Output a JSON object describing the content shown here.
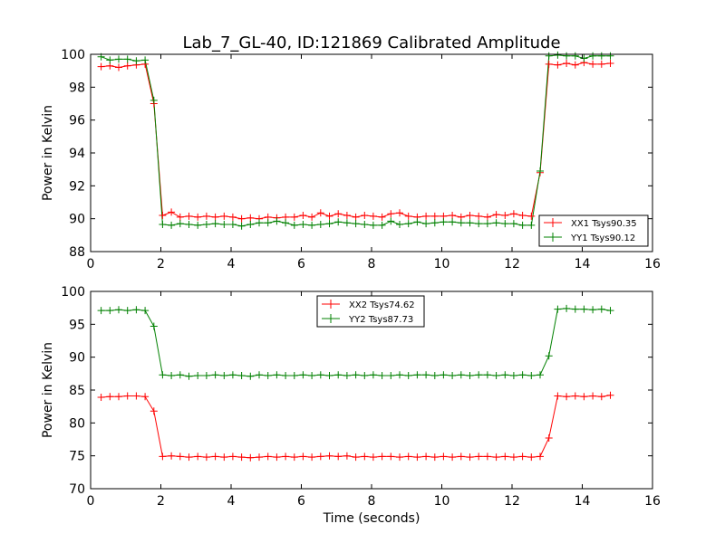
{
  "chart_data": [
    {
      "type": "line",
      "title": "Lab_7_GL-40, ID:121869 Calibrated Amplitude",
      "xlabel": "",
      "ylabel": "Power in Kelvin",
      "xlim": [
        0,
        16
      ],
      "ylim": [
        88,
        100
      ],
      "xticks": [
        "0",
        "2",
        "4",
        "6",
        "8",
        "10",
        "12",
        "14",
        "16"
      ],
      "yticks": [
        "88",
        "90",
        "92",
        "94",
        "96",
        "98",
        "100"
      ],
      "grid": false,
      "legend_position": "lower-right",
      "x": [
        0.3,
        0.55,
        0.8,
        1.05,
        1.3,
        1.55,
        1.8,
        2.05,
        2.3,
        2.55,
        2.8,
        3.05,
        3.3,
        3.55,
        3.8,
        4.05,
        4.3,
        4.55,
        4.8,
        5.05,
        5.3,
        5.55,
        5.8,
        6.05,
        6.3,
        6.55,
        6.8,
        7.05,
        7.3,
        7.55,
        7.8,
        8.05,
        8.3,
        8.55,
        8.8,
        9.05,
        9.3,
        9.55,
        9.8,
        10.05,
        10.3,
        10.55,
        10.8,
        11.05,
        11.3,
        11.55,
        11.8,
        12.05,
        12.3,
        12.55,
        12.8,
        13.05,
        13.3,
        13.55,
        13.8,
        14.05,
        14.3,
        14.55,
        14.8
      ],
      "series": [
        {
          "name": "XX1 Tsys90.35",
          "color": "#ff0000",
          "values": [
            99.25,
            99.3,
            99.2,
            99.3,
            99.35,
            99.4,
            97.0,
            90.2,
            90.4,
            90.1,
            90.15,
            90.1,
            90.15,
            90.1,
            90.15,
            90.1,
            90.0,
            90.05,
            90.0,
            90.1,
            90.05,
            90.1,
            90.1,
            90.2,
            90.1,
            90.35,
            90.15,
            90.3,
            90.2,
            90.1,
            90.2,
            90.15,
            90.1,
            90.3,
            90.35,
            90.15,
            90.1,
            90.15,
            90.15,
            90.15,
            90.2,
            90.1,
            90.2,
            90.15,
            90.1,
            90.25,
            90.2,
            90.3,
            90.2,
            90.15,
            92.8,
            99.4,
            99.35,
            99.45,
            99.35,
            99.5,
            99.4,
            99.4,
            99.45
          ]
        },
        {
          "name": "YY1 Tsys90.12",
          "color": "#008000",
          "values": [
            99.85,
            99.65,
            99.7,
            99.7,
            99.6,
            99.65,
            97.2,
            89.65,
            89.6,
            89.7,
            89.65,
            89.6,
            89.65,
            89.7,
            89.65,
            89.65,
            89.55,
            89.65,
            89.75,
            89.75,
            89.85,
            89.75,
            89.6,
            89.65,
            89.6,
            89.65,
            89.7,
            89.8,
            89.75,
            89.7,
            89.65,
            89.6,
            89.6,
            89.85,
            89.65,
            89.7,
            89.8,
            89.7,
            89.75,
            89.8,
            89.8,
            89.75,
            89.75,
            89.7,
            89.7,
            89.75,
            89.7,
            89.7,
            89.6,
            89.6,
            92.9,
            99.9,
            99.95,
            99.9,
            99.9,
            99.75,
            99.9,
            99.9,
            99.9
          ]
        }
      ]
    },
    {
      "type": "line",
      "title": "",
      "xlabel": "Time (seconds)",
      "ylabel": "Power in Kelvin",
      "xlim": [
        0,
        16
      ],
      "ylim": [
        70,
        100
      ],
      "xticks": [
        "0",
        "2",
        "4",
        "6",
        "8",
        "10",
        "12",
        "14",
        "16"
      ],
      "yticks": [
        "70",
        "75",
        "80",
        "85",
        "90",
        "95",
        "100"
      ],
      "grid": false,
      "legend_position": "upper-center",
      "x": [
        0.3,
        0.55,
        0.8,
        1.05,
        1.3,
        1.55,
        1.8,
        2.05,
        2.3,
        2.55,
        2.8,
        3.05,
        3.3,
        3.55,
        3.8,
        4.05,
        4.3,
        4.55,
        4.8,
        5.05,
        5.3,
        5.55,
        5.8,
        6.05,
        6.3,
        6.55,
        6.8,
        7.05,
        7.3,
        7.55,
        7.8,
        8.05,
        8.3,
        8.55,
        8.8,
        9.05,
        9.3,
        9.55,
        9.8,
        10.05,
        10.3,
        10.55,
        10.8,
        11.05,
        11.3,
        11.55,
        11.8,
        12.05,
        12.3,
        12.55,
        12.8,
        13.05,
        13.3,
        13.55,
        13.8,
        14.05,
        14.3,
        14.55,
        14.8
      ],
      "series": [
        {
          "name": "XX2 Tsys74.62",
          "color": "#ff0000",
          "values": [
            83.9,
            84.0,
            84.0,
            84.1,
            84.1,
            84.0,
            81.8,
            74.9,
            75.0,
            74.9,
            74.8,
            74.9,
            74.8,
            74.9,
            74.8,
            74.9,
            74.8,
            74.7,
            74.8,
            74.9,
            74.8,
            74.9,
            74.8,
            74.9,
            74.8,
            74.9,
            75.0,
            74.9,
            75.0,
            74.8,
            74.9,
            74.8,
            74.9,
            74.9,
            74.8,
            74.9,
            74.8,
            74.9,
            74.8,
            74.9,
            74.8,
            74.9,
            74.8,
            74.9,
            74.9,
            74.8,
            74.9,
            74.8,
            74.9,
            74.8,
            74.9,
            77.7,
            84.1,
            84.0,
            84.1,
            84.0,
            84.1,
            84.0,
            84.2
          ]
        },
        {
          "name": "YY2 Tsys87.73",
          "color": "#008000",
          "values": [
            97.1,
            97.1,
            97.2,
            97.1,
            97.2,
            97.1,
            94.7,
            87.3,
            87.2,
            87.3,
            87.1,
            87.2,
            87.2,
            87.3,
            87.2,
            87.3,
            87.2,
            87.1,
            87.3,
            87.2,
            87.3,
            87.2,
            87.2,
            87.3,
            87.2,
            87.3,
            87.2,
            87.3,
            87.2,
            87.3,
            87.2,
            87.3,
            87.2,
            87.2,
            87.3,
            87.2,
            87.3,
            87.3,
            87.2,
            87.3,
            87.2,
            87.3,
            87.2,
            87.3,
            87.3,
            87.2,
            87.3,
            87.2,
            87.3,
            87.2,
            87.3,
            90.2,
            97.3,
            97.4,
            97.3,
            97.3,
            97.2,
            97.3,
            97.1
          ]
        }
      ]
    }
  ]
}
